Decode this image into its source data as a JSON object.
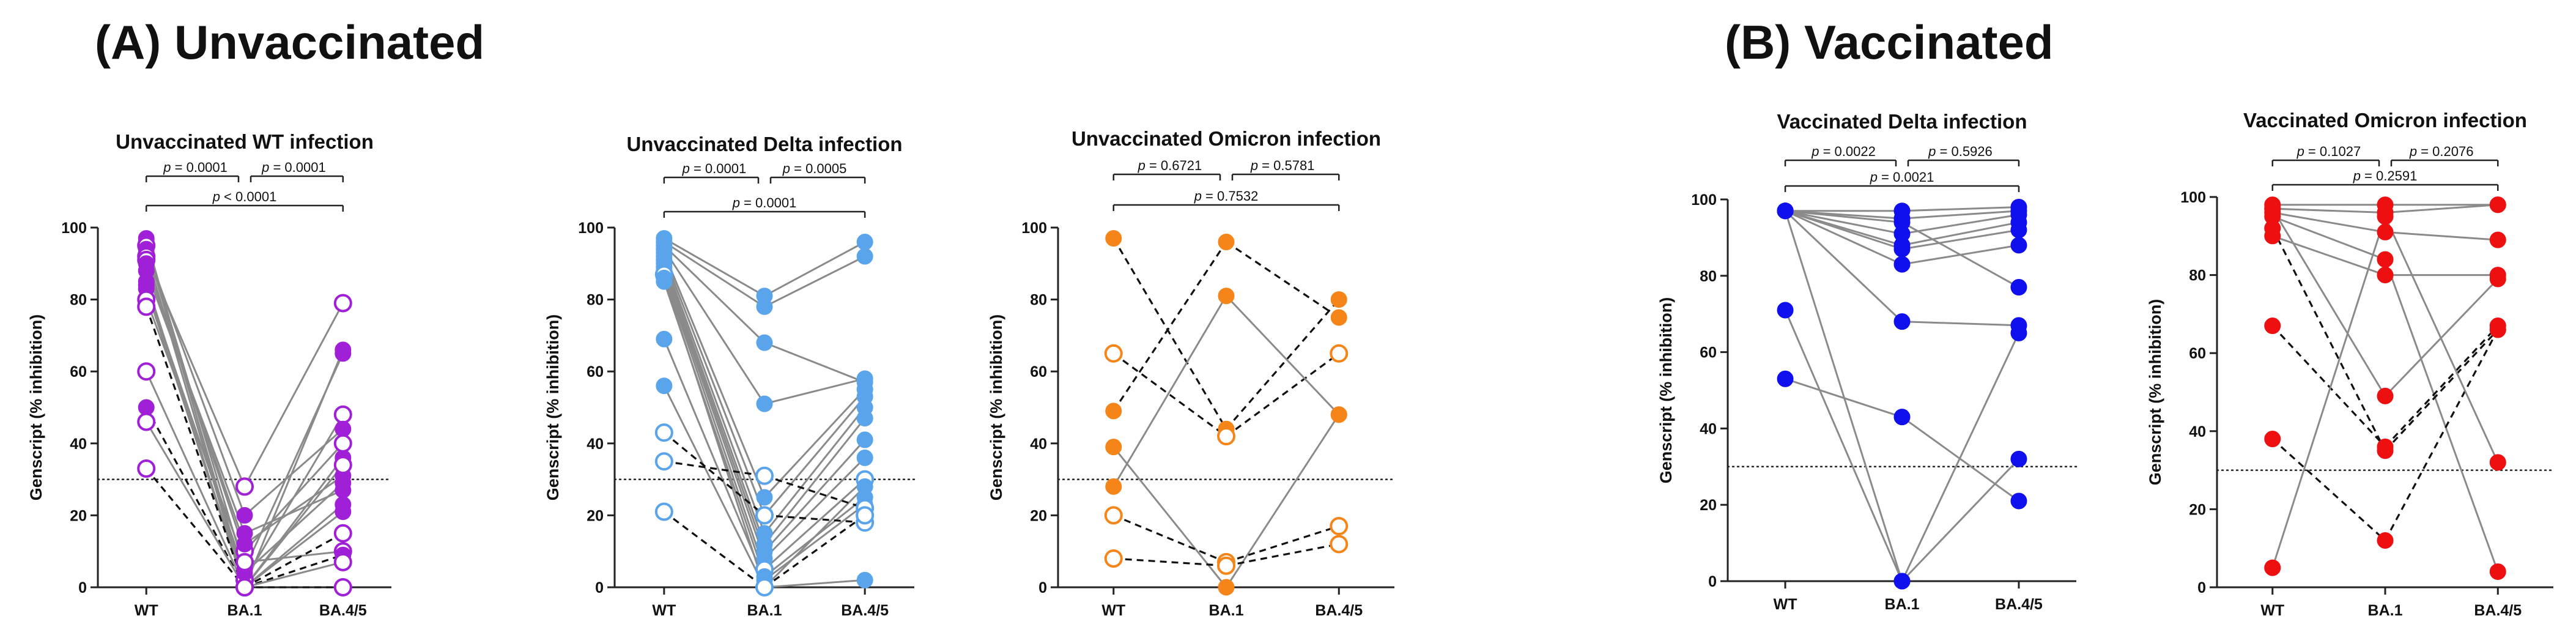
{
  "figure": {
    "section_a_title": "(A) Unvaccinated",
    "section_b_title": "(B) Vaccinated"
  },
  "chart_data": [
    {
      "type": "scatter",
      "title": "Unvaccinated WT infection",
      "ylabel": "Genscript (% inhibition)",
      "categories": [
        "WT",
        "BA.1",
        "BA.4/5"
      ],
      "ylim": [
        0,
        100
      ],
      "yticks": [
        0,
        20,
        40,
        60,
        80,
        100
      ],
      "threshold": 30,
      "color": "#a020d8",
      "pvalues": [
        {
          "label": "p = 0.0001",
          "from": 0,
          "to": 1
        },
        {
          "label": "p = 0.0001",
          "from": 1,
          "to": 2
        },
        {
          "label": "p < 0.0001",
          "from": 0,
          "to": 2
        }
      ],
      "subjects": [
        {
          "values": [
            97,
            0,
            66
          ],
          "style": "filled",
          "line": "solid"
        },
        {
          "values": [
            96,
            5,
            65
          ],
          "style": "filled",
          "line": "solid"
        },
        {
          "values": [
            95,
            2,
            48
          ],
          "style": "open",
          "line": "solid"
        },
        {
          "values": [
            94,
            20,
            44
          ],
          "style": "filled",
          "line": "solid"
        },
        {
          "values": [
            93,
            0,
            36
          ],
          "style": "filled",
          "line": "solid"
        },
        {
          "values": [
            92,
            28,
            79
          ],
          "style": "open",
          "line": "solid"
        },
        {
          "values": [
            91,
            10,
            40
          ],
          "style": "open",
          "line": "solid"
        },
        {
          "values": [
            90,
            12,
            31
          ],
          "style": "filled",
          "line": "solid"
        },
        {
          "values": [
            88,
            15,
            27
          ],
          "style": "filled",
          "line": "solid"
        },
        {
          "values": [
            85,
            0,
            23
          ],
          "style": "filled",
          "line": "solid"
        },
        {
          "values": [
            84,
            4,
            29
          ],
          "style": "filled",
          "line": "solid"
        },
        {
          "values": [
            83,
            0,
            21
          ],
          "style": "filled",
          "line": "solid"
        },
        {
          "values": [
            80,
            7,
            10
          ],
          "style": "open",
          "line": "solid"
        },
        {
          "values": [
            78,
            0,
            15
          ],
          "style": "open",
          "line": "dashed"
        },
        {
          "values": [
            60,
            0,
            34
          ],
          "style": "open",
          "line": "solid"
        },
        {
          "values": [
            50,
            0,
            9
          ],
          "style": "filled",
          "line": "dashed"
        },
        {
          "values": [
            46,
            0,
            7
          ],
          "style": "open",
          "line": "solid"
        },
        {
          "values": [
            33,
            0,
            0
          ],
          "style": "open",
          "line": "dashed"
        }
      ]
    },
    {
      "type": "scatter",
      "title": "Unvaccinated Delta infection",
      "ylabel": "Genscript (% inhibition)",
      "categories": [
        "WT",
        "BA.1",
        "BA.4/5"
      ],
      "ylim": [
        0,
        100
      ],
      "yticks": [
        0,
        20,
        40,
        60,
        80,
        100
      ],
      "threshold": 30,
      "color": "#5aa4ec",
      "pvalues": [
        {
          "label": "p = 0.0001",
          "from": 0,
          "to": 1
        },
        {
          "label": "p = 0.0005",
          "from": 1,
          "to": 2
        },
        {
          "label": "p = 0.0001",
          "from": 0,
          "to": 2
        }
      ],
      "subjects": [
        {
          "values": [
            97,
            81,
            96
          ],
          "style": "filled",
          "line": "solid"
        },
        {
          "values": [
            96,
            78,
            92
          ],
          "style": "filled",
          "line": "solid"
        },
        {
          "values": [
            95,
            68,
            57
          ],
          "style": "filled",
          "line": "solid"
        },
        {
          "values": [
            94,
            51,
            58
          ],
          "style": "filled",
          "line": "solid"
        },
        {
          "values": [
            93,
            25,
            55
          ],
          "style": "filled",
          "line": "solid"
        },
        {
          "values": [
            92,
            20,
            53
          ],
          "style": "filled",
          "line": "solid"
        },
        {
          "values": [
            91,
            15,
            50
          ],
          "style": "filled",
          "line": "solid"
        },
        {
          "values": [
            90,
            12,
            47
          ],
          "style": "filled",
          "line": "solid"
        },
        {
          "values": [
            89,
            10,
            41
          ],
          "style": "filled",
          "line": "solid"
        },
        {
          "values": [
            88,
            8,
            36
          ],
          "style": "filled",
          "line": "solid"
        },
        {
          "values": [
            87,
            5,
            30
          ],
          "style": "open",
          "line": "solid"
        },
        {
          "values": [
            86,
            0,
            28
          ],
          "style": "filled",
          "line": "solid"
        },
        {
          "values": [
            85,
            3,
            25
          ],
          "style": "filled",
          "line": "solid"
        },
        {
          "values": [
            69,
            2,
            23
          ],
          "style": "filled",
          "line": "solid"
        },
        {
          "values": [
            56,
            0,
            2
          ],
          "style": "filled",
          "line": "solid"
        },
        {
          "values": [
            43,
            20,
            18
          ],
          "style": "open",
          "line": "dashed"
        },
        {
          "values": [
            35,
            31,
            22
          ],
          "style": "open",
          "line": "dashed"
        },
        {
          "values": [
            21,
            0,
            20
          ],
          "style": "open",
          "line": "dashed"
        }
      ]
    },
    {
      "type": "scatter",
      "title": "Unvaccinated Omicron infection",
      "ylabel": "Genscript (% inhibition)",
      "categories": [
        "WT",
        "BA.1",
        "BA.4/5"
      ],
      "ylim": [
        0,
        100
      ],
      "yticks": [
        0,
        20,
        40,
        60,
        80,
        100
      ],
      "threshold": 30,
      "color": "#f58518",
      "pvalues": [
        {
          "label": "p = 0.6721",
          "from": 0,
          "to": 1
        },
        {
          "label": "p = 0.5781",
          "from": 1,
          "to": 2
        },
        {
          "label": "p = 0.7532",
          "from": 0,
          "to": 2
        }
      ],
      "subjects": [
        {
          "values": [
            97,
            44,
            80
          ],
          "style": "filled",
          "line": "dashed"
        },
        {
          "values": [
            65,
            42,
            65
          ],
          "style": "open",
          "line": "dashed"
        },
        {
          "values": [
            49,
            96,
            75
          ],
          "style": "filled",
          "line": "dashed"
        },
        {
          "values": [
            39,
            0,
            48
          ],
          "style": "filled",
          "line": "solid"
        },
        {
          "values": [
            28,
            81,
            48
          ],
          "style": "filled",
          "line": "solid"
        },
        {
          "values": [
            20,
            7,
            17
          ],
          "style": "open",
          "line": "dashed"
        },
        {
          "values": [
            8,
            6,
            12
          ],
          "style": "open",
          "line": "dashed"
        }
      ]
    },
    {
      "type": "scatter",
      "title": "Vaccinated Delta infection",
      "ylabel": "Genscript (% inhibition)",
      "categories": [
        "WT",
        "BA.1",
        "BA.4/5"
      ],
      "ylim": [
        0,
        100
      ],
      "yticks": [
        0,
        20,
        40,
        60,
        80,
        100
      ],
      "threshold": 30,
      "color": "#1010ee",
      "pvalues": [
        {
          "label": "p = 0.0022",
          "from": 0,
          "to": 1
        },
        {
          "label": "p = 0.5926",
          "from": 1,
          "to": 2
        },
        {
          "label": "p = 0.0021",
          "from": 0,
          "to": 2
        }
      ],
      "subjects": [
        {
          "values": [
            97,
            97,
            98
          ],
          "style": "filled",
          "line": "solid"
        },
        {
          "values": [
            97,
            95,
            97
          ],
          "style": "filled",
          "line": "solid"
        },
        {
          "values": [
            97,
            91,
            96
          ],
          "style": "filled",
          "line": "solid"
        },
        {
          "values": [
            97,
            88,
            94
          ],
          "style": "filled",
          "line": "solid"
        },
        {
          "values": [
            97,
            87,
            92
          ],
          "style": "filled",
          "line": "solid"
        },
        {
          "values": [
            97,
            83,
            88
          ],
          "style": "filled",
          "line": "solid"
        },
        {
          "values": [
            97,
            68,
            67
          ],
          "style": "filled",
          "line": "solid"
        },
        {
          "values": [
            97,
            0,
            32
          ],
          "style": "filled",
          "line": "solid"
        },
        {
          "values": [
            97,
            94,
            77
          ],
          "style": "filled",
          "line": "solid"
        },
        {
          "values": [
            71,
            0,
            65
          ],
          "style": "filled",
          "line": "solid"
        },
        {
          "values": [
            53,
            43,
            21
          ],
          "style": "filled",
          "line": "solid"
        }
      ]
    },
    {
      "type": "scatter",
      "title": "Vaccinated Omicron infection",
      "ylabel": "Genscript (% inhibition)",
      "categories": [
        "WT",
        "BA.1",
        "BA.4/5"
      ],
      "ylim": [
        0,
        100
      ],
      "yticks": [
        0,
        20,
        40,
        60,
        80,
        100
      ],
      "threshold": 30,
      "color": "#ee1010",
      "pvalues": [
        {
          "label": "p = 0.1027",
          "from": 0,
          "to": 1
        },
        {
          "label": "p = 0.2076",
          "from": 1,
          "to": 2
        },
        {
          "label": "p = 0.2591",
          "from": 0,
          "to": 2
        }
      ],
      "subjects": [
        {
          "values": [
            98,
            98,
            98
          ],
          "style": "filled",
          "line": "solid"
        },
        {
          "values": [
            97,
            96,
            98
          ],
          "style": "filled",
          "line": "solid"
        },
        {
          "values": [
            96,
            91,
            89
          ],
          "style": "filled",
          "line": "solid"
        },
        {
          "values": [
            95,
            84,
            4
          ],
          "style": "filled",
          "line": "solid"
        },
        {
          "values": [
            90,
            80,
            80
          ],
          "style": "filled",
          "line": "solid"
        },
        {
          "values": [
            97,
            49,
            79
          ],
          "style": "filled",
          "line": "solid"
        },
        {
          "values": [
            92,
            35,
            66
          ],
          "style": "filled",
          "line": "dashed"
        },
        {
          "values": [
            67,
            36,
            67
          ],
          "style": "filled",
          "line": "dashed"
        },
        {
          "values": [
            38,
            12,
            66
          ],
          "style": "filled",
          "line": "dashed"
        },
        {
          "values": [
            5,
            95,
            32
          ],
          "style": "filled",
          "line": "solid"
        }
      ]
    }
  ]
}
